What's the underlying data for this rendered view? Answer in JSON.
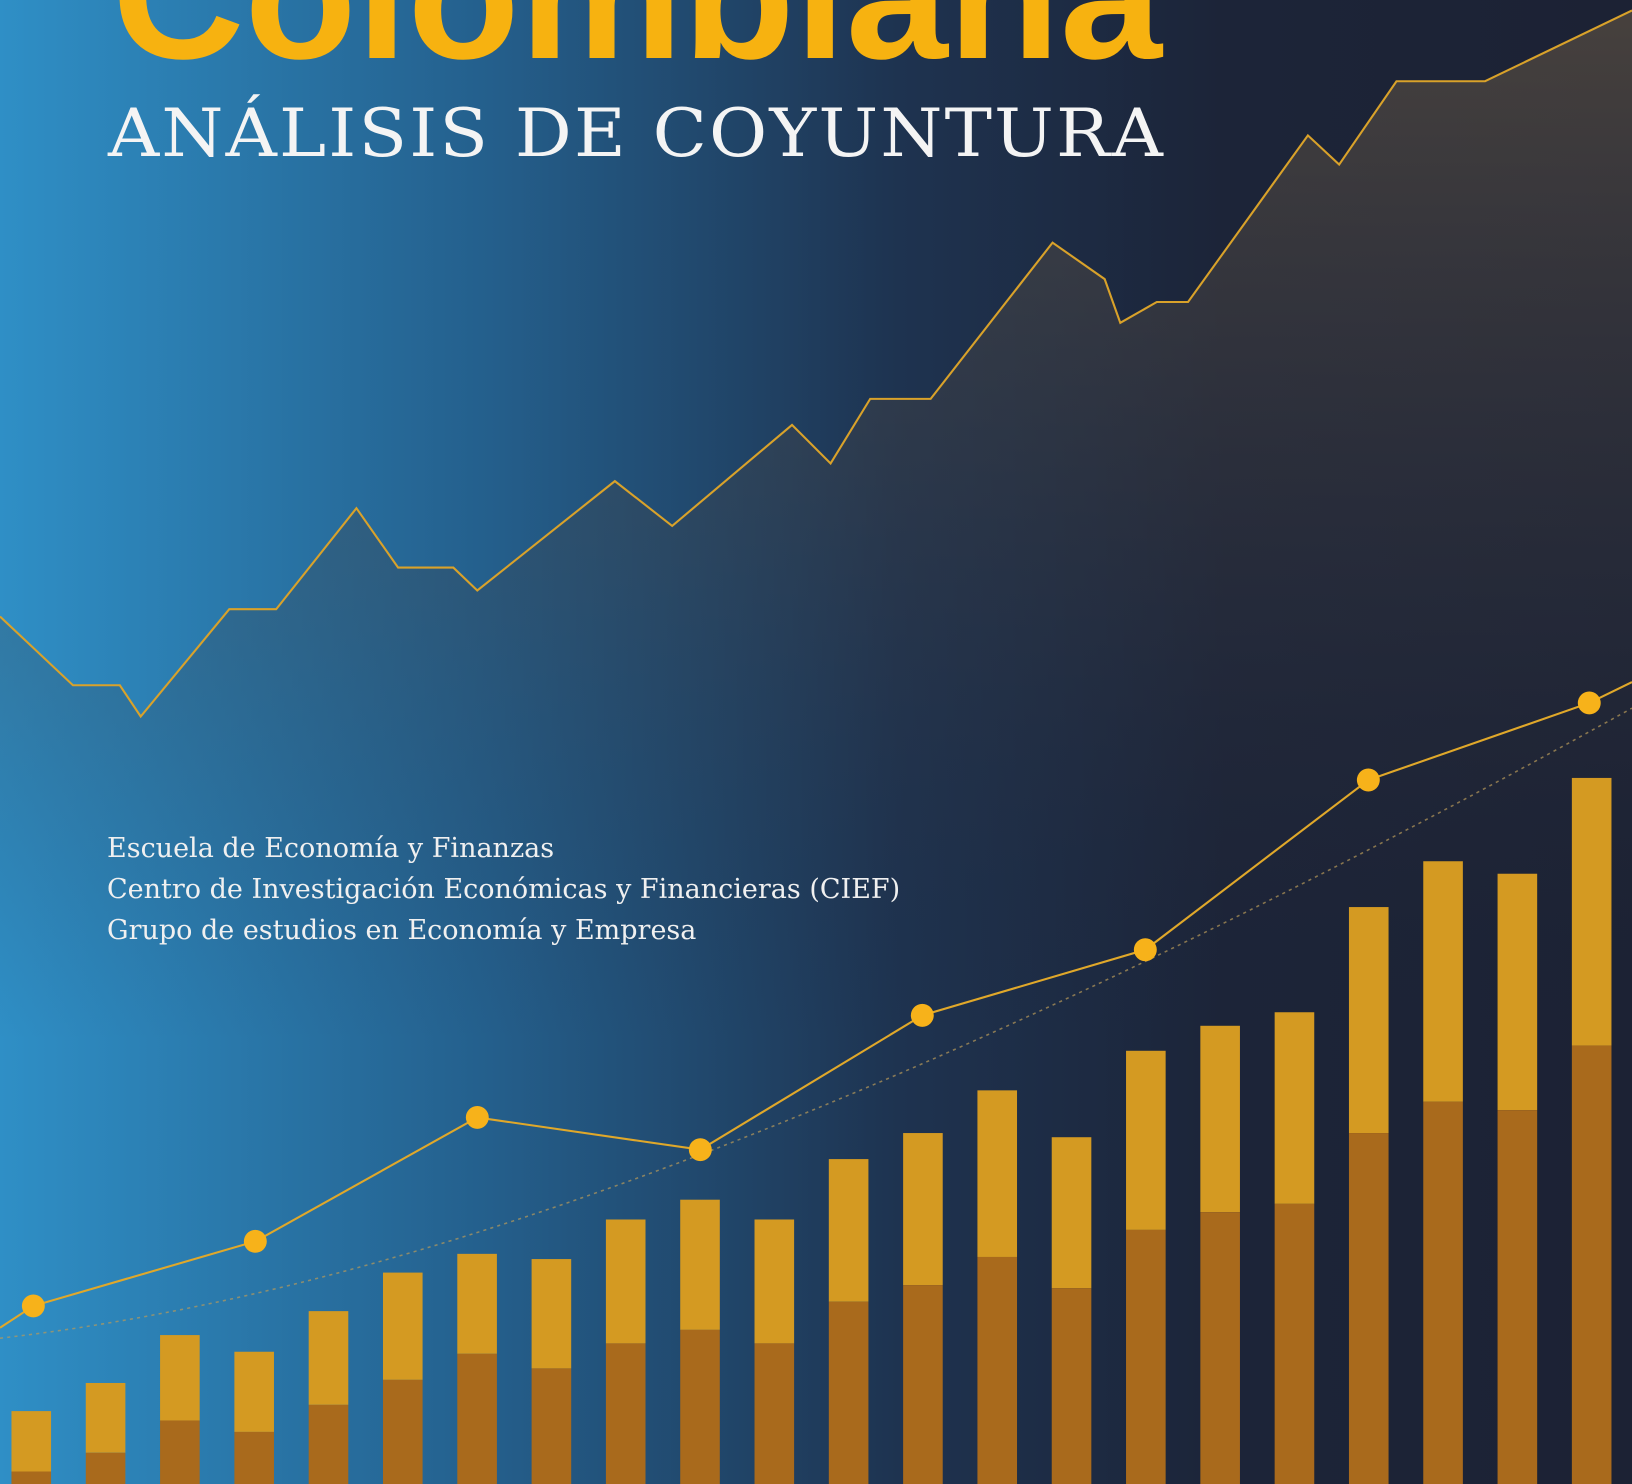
{
  "cover": {
    "title": "Colombiana",
    "subtitle": "ANÁLISIS DE COYUNTURA",
    "affiliations": [
      "Escuela de Economía y Finanzas",
      "Centro de Investigación Económicas y Financieras (CIEF)",
      "Grupo de estudios en Economía y Empresa"
    ]
  }
}
